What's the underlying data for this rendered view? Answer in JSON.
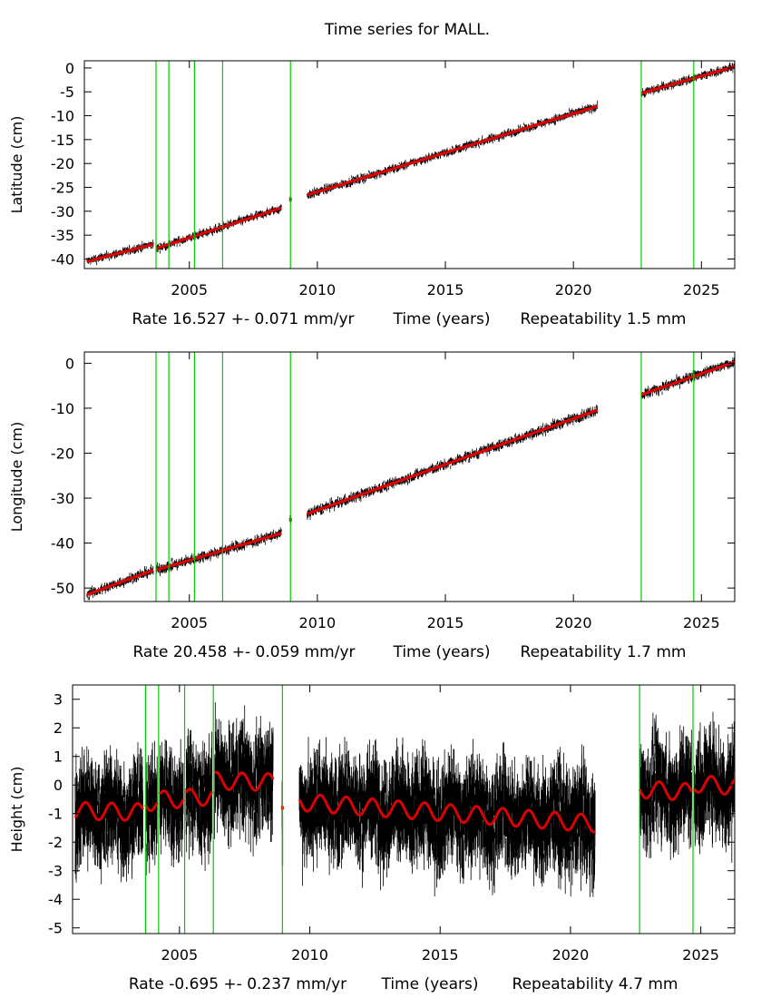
{
  "title": "Time series for MALL.",
  "colors": {
    "observations": "#000000",
    "model": "#dd0000",
    "offsets": "#00cc00",
    "frame": "#000000"
  },
  "chart_data": [
    {
      "type": "scatter",
      "title": "Time series for MALL.",
      "ylabel": "Latitude (cm)",
      "xlabel_parts": {
        "rate": "Rate 16.527 +- 0.071 mm/yr",
        "axis": "Time (years)",
        "repeatability": "Repeatability 1.5 mm"
      },
      "xlim": [
        2000.9,
        2026.3
      ],
      "ylim": [
        -42,
        1.5
      ],
      "xticks": [
        2005,
        2010,
        2015,
        2020,
        2025
      ],
      "yticks": [
        0,
        -5,
        -10,
        -15,
        -20,
        -25,
        -30,
        -35,
        -40
      ],
      "offsets": [
        2003.7,
        2004.2,
        2005.2,
        2006.3,
        2008.95,
        2022.65,
        2024.7
      ],
      "segments": [
        {
          "start": 2001.0,
          "end": 2003.6,
          "y0": -40.5,
          "y1": -36.9
        },
        {
          "start": 2003.7,
          "end": 2008.6,
          "y0": -37.8,
          "y1": -29.3
        },
        {
          "start": 2008.95,
          "end": 2008.95,
          "y0": -27.5,
          "y1": -27.5
        },
        {
          "start": 2009.6,
          "end": 2020.95,
          "y0": -26.6,
          "y1": -8.0
        },
        {
          "start": 2022.65,
          "end": 2026.3,
          "y0": -5.3,
          "y1": 0.3
        }
      ],
      "noise": 0.35,
      "seasonal_amp": 0
    },
    {
      "type": "scatter",
      "ylabel": "Longitude (cm)",
      "xlabel_parts": {
        "rate": "Rate 20.458 +- 0.059 mm/yr",
        "axis": "Time (years)",
        "repeatability": "Repeatability 1.7 mm"
      },
      "xlim": [
        2000.9,
        2026.3
      ],
      "ylim": [
        -53,
        2.5
      ],
      "xticks": [
        2005,
        2010,
        2015,
        2020,
        2025
      ],
      "yticks": [
        0,
        -10,
        -20,
        -30,
        -40,
        -50
      ],
      "offsets": [
        2003.7,
        2004.2,
        2005.2,
        2006.3,
        2008.95,
        2022.65,
        2024.7
      ],
      "segments": [
        {
          "start": 2001.0,
          "end": 2003.6,
          "y0": -51.5,
          "y1": -46.0
        },
        {
          "start": 2003.7,
          "end": 2008.6,
          "y0": -46.0,
          "y1": -37.8
        },
        {
          "start": 2008.95,
          "end": 2008.95,
          "y0": -34.8,
          "y1": -34.8
        },
        {
          "start": 2009.6,
          "end": 2020.95,
          "y0": -33.5,
          "y1": -10.4
        },
        {
          "start": 2022.65,
          "end": 2026.3,
          "y0": -7.0,
          "y1": 0.3
        }
      ],
      "noise": 0.45,
      "seasonal_amp": 0
    },
    {
      "type": "scatter",
      "ylabel": "Height (cm)",
      "xlabel_parts": {
        "rate": "Rate -0.695 +- 0.237 mm/yr",
        "axis": "Time (years)",
        "repeatability": "Repeatability 4.7 mm"
      },
      "xlim": [
        2000.9,
        2026.3
      ],
      "ylim": [
        -5.2,
        3.5
      ],
      "xticks": [
        2005,
        2010,
        2015,
        2020,
        2025
      ],
      "yticks": [
        3,
        2,
        1,
        0,
        -1,
        -2,
        -3,
        -4,
        -5
      ],
      "offsets": [
        2003.7,
        2004.2,
        2005.2,
        2006.3,
        2008.95,
        2022.65,
        2024.7
      ],
      "segments": [
        {
          "start": 2001.0,
          "end": 2003.6,
          "y0": -0.9,
          "y1": -0.95
        },
        {
          "start": 2003.7,
          "end": 2004.15,
          "y0": -0.6,
          "y1": -0.6
        },
        {
          "start": 2004.25,
          "end": 2005.15,
          "y0": -0.5,
          "y1": -0.5
        },
        {
          "start": 2005.25,
          "end": 2006.25,
          "y0": -0.45,
          "y1": -0.4
        },
        {
          "start": 2006.35,
          "end": 2008.6,
          "y0": 0.15,
          "y1": 0.1
        },
        {
          "start": 2008.95,
          "end": 2008.95,
          "y0": -0.8,
          "y1": -0.8
        },
        {
          "start": 2009.6,
          "end": 2020.95,
          "y0": -0.6,
          "y1": -1.35
        },
        {
          "start": 2022.65,
          "end": 2024.65,
          "y0": -0.15,
          "y1": -0.25
        },
        {
          "start": 2024.75,
          "end": 2026.3,
          "y0": 0.05,
          "y1": -0.05
        }
      ],
      "noise": 0.7,
      "seasonal_amp": 0.3
    }
  ]
}
